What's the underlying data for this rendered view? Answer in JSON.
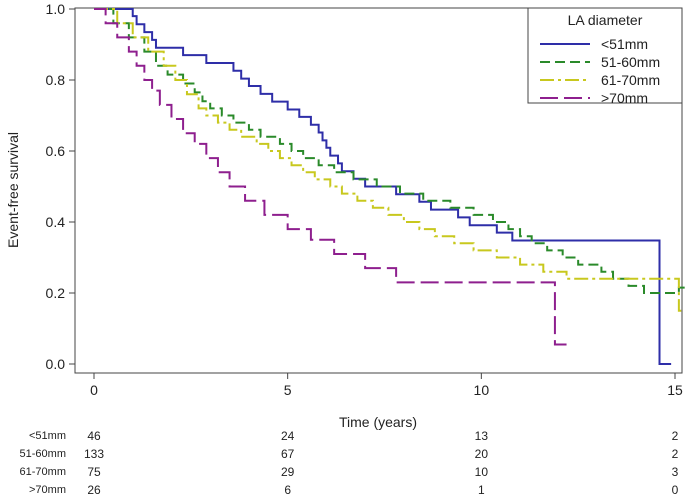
{
  "chart_data": {
    "type": "line",
    "ylabel": "Event-free survival",
    "xlabel": "Time (years)",
    "xlim": [
      0,
      15.4
    ],
    "ylim": [
      0,
      1.0
    ],
    "xticks": [
      0,
      5,
      10,
      15
    ],
    "yticks": [
      0.0,
      0.2,
      0.4,
      0.6,
      0.8,
      1.0
    ],
    "xtick_labels": [
      "0",
      "5",
      "10",
      "15"
    ],
    "ytick_labels": [
      "0.0",
      "0.2",
      "0.4",
      "0.6",
      "0.8",
      "1.0"
    ],
    "grid": false,
    "legend": {
      "title": "LA diameter",
      "placement": "top-right"
    },
    "series": [
      {
        "name": "<51mm",
        "color": "#2e2ea8",
        "dash": "solid",
        "steps": [
          [
            0,
            1.0
          ],
          [
            1.0,
            0.98
          ],
          [
            1.1,
            0.957
          ],
          [
            1.3,
            0.935
          ],
          [
            1.5,
            0.913
          ],
          [
            1.6,
            0.891
          ],
          [
            2.3,
            0.87
          ],
          [
            2.9,
            0.848
          ],
          [
            2.9,
            0.87
          ],
          [
            3.5,
            0.848
          ],
          [
            3.6,
            0.826
          ],
          [
            3.8,
            0.804
          ],
          [
            4.0,
            0.783
          ],
          [
            4.3,
            0.761
          ],
          [
            4.6,
            0.739
          ],
          [
            5.0,
            0.717
          ],
          [
            5.3,
            0.696
          ],
          [
            5.6,
            0.674
          ],
          [
            5.8,
            0.652
          ],
          [
            5.9,
            0.63
          ],
          [
            6.0,
            0.609
          ],
          [
            6.1,
            0.587
          ],
          [
            6.3,
            0.565
          ],
          [
            6.4,
            0.543
          ],
          [
            6.7,
            0.522
          ],
          [
            7.0,
            0.5
          ],
          [
            7.8,
            0.478
          ],
          [
            8.4,
            0.457
          ],
          [
            8.7,
            0.435
          ],
          [
            9.4,
            0.413
          ],
          [
            9.7,
            0.391
          ],
          [
            10.4,
            0.37
          ],
          [
            10.8,
            0.348
          ]
        ]
      },
      {
        "name": "51-60mm",
        "color": "#2a8a2a",
        "dash": "10 5",
        "steps": [
          [
            0,
            1.0
          ],
          [
            0.5,
            0.96
          ],
          [
            0.9,
            0.92
          ],
          [
            1.3,
            0.88
          ],
          [
            1.6,
            0.84
          ],
          [
            1.9,
            0.815
          ],
          [
            2.3,
            0.79
          ],
          [
            2.6,
            0.765
          ],
          [
            2.8,
            0.74
          ],
          [
            3.0,
            0.72
          ],
          [
            3.3,
            0.7
          ],
          [
            3.6,
            0.68
          ],
          [
            4.0,
            0.66
          ],
          [
            4.3,
            0.64
          ],
          [
            4.8,
            0.62
          ],
          [
            5.1,
            0.6
          ],
          [
            5.4,
            0.58
          ],
          [
            5.8,
            0.56
          ],
          [
            6.2,
            0.54
          ],
          [
            6.7,
            0.52
          ],
          [
            7.3,
            0.5
          ],
          [
            7.9,
            0.48
          ],
          [
            8.5,
            0.46
          ],
          [
            9.2,
            0.44
          ],
          [
            9.8,
            0.42
          ],
          [
            10.3,
            0.4
          ],
          [
            10.7,
            0.38
          ],
          [
            11.0,
            0.36
          ],
          [
            11.3,
            0.34
          ],
          [
            11.7,
            0.32
          ],
          [
            12.1,
            0.3
          ],
          [
            12.5,
            0.28
          ],
          [
            13.1,
            0.26
          ],
          [
            13.4,
            0.24
          ],
          [
            13.8,
            0.22
          ],
          [
            14.2,
            0.2
          ]
        ]
      },
      {
        "name": "61-70mm",
        "color": "#c8c81e",
        "dash": "14 4 3 4",
        "steps": [
          [
            0,
            1.0
          ],
          [
            0.6,
            0.96
          ],
          [
            1.0,
            0.92
          ],
          [
            1.4,
            0.88
          ],
          [
            1.8,
            0.84
          ],
          [
            2.1,
            0.8
          ],
          [
            2.4,
            0.76
          ],
          [
            2.7,
            0.72
          ],
          [
            2.9,
            0.7
          ],
          [
            3.2,
            0.68
          ],
          [
            3.5,
            0.66
          ],
          [
            3.8,
            0.64
          ],
          [
            4.2,
            0.62
          ],
          [
            4.5,
            0.6
          ],
          [
            4.8,
            0.58
          ],
          [
            5.1,
            0.56
          ],
          [
            5.4,
            0.54
          ],
          [
            5.7,
            0.52
          ],
          [
            6.1,
            0.5
          ],
          [
            6.4,
            0.48
          ],
          [
            6.8,
            0.46
          ],
          [
            7.2,
            0.44
          ],
          [
            7.6,
            0.42
          ],
          [
            8.0,
            0.4
          ],
          [
            8.4,
            0.38
          ],
          [
            8.8,
            0.36
          ],
          [
            9.3,
            0.34
          ],
          [
            9.8,
            0.32
          ],
          [
            10.4,
            0.3
          ],
          [
            11.0,
            0.28
          ],
          [
            11.6,
            0.26
          ],
          [
            12.2,
            0.24
          ]
        ]
      },
      {
        "name": ">70mm",
        "color": "#8e1f8e",
        "dash": "18 6",
        "steps": [
          [
            0,
            1.0
          ],
          [
            0.3,
            0.96
          ],
          [
            0.6,
            0.92
          ],
          [
            0.9,
            0.88
          ],
          [
            1.1,
            0.84
          ],
          [
            1.3,
            0.8
          ],
          [
            1.5,
            0.77
          ],
          [
            1.7,
            0.73
          ],
          [
            2.0,
            0.69
          ],
          [
            2.3,
            0.65
          ],
          [
            2.6,
            0.62
          ],
          [
            2.9,
            0.58
          ],
          [
            3.2,
            0.54
          ],
          [
            3.5,
            0.5
          ],
          [
            3.9,
            0.46
          ],
          [
            4.4,
            0.42
          ],
          [
            5.0,
            0.38
          ],
          [
            5.6,
            0.35
          ],
          [
            6.2,
            0.31
          ],
          [
            7.0,
            0.27
          ],
          [
            7.8,
            0.23
          ]
        ]
      }
    ]
  },
  "risk_table": {
    "rows": [
      {
        "label": "<51mm",
        "values": [
          "46",
          "24",
          "13",
          "2"
        ]
      },
      {
        "label": "51-60mm",
        "values": [
          "133",
          "67",
          "20",
          "2"
        ]
      },
      {
        "label": "61-70mm",
        "values": [
          "75",
          "29",
          "10",
          "3"
        ]
      },
      {
        "label": ">70mm",
        "values": [
          "26",
          "6",
          "1",
          "0"
        ]
      }
    ],
    "times": [
      0,
      5,
      10,
      15
    ]
  }
}
